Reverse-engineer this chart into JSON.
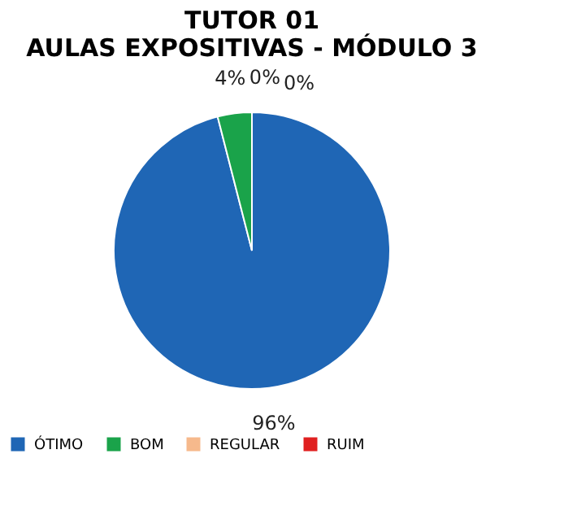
{
  "chart_data": {
    "type": "pie",
    "title": "TUTOR 01\nAULAS EXPOSITIVAS - MÓDULO 3",
    "categories": [
      "ÓTIMO",
      "BOM",
      "REGULAR",
      "RUIM"
    ],
    "values": [
      96,
      4,
      0,
      0
    ],
    "colors": [
      "#1f66b5",
      "#1aa34a",
      "#f6b98c",
      "#e02020"
    ],
    "value_labels": [
      "96%",
      "4%",
      "0%",
      "0%"
    ],
    "legend": "bottom"
  }
}
